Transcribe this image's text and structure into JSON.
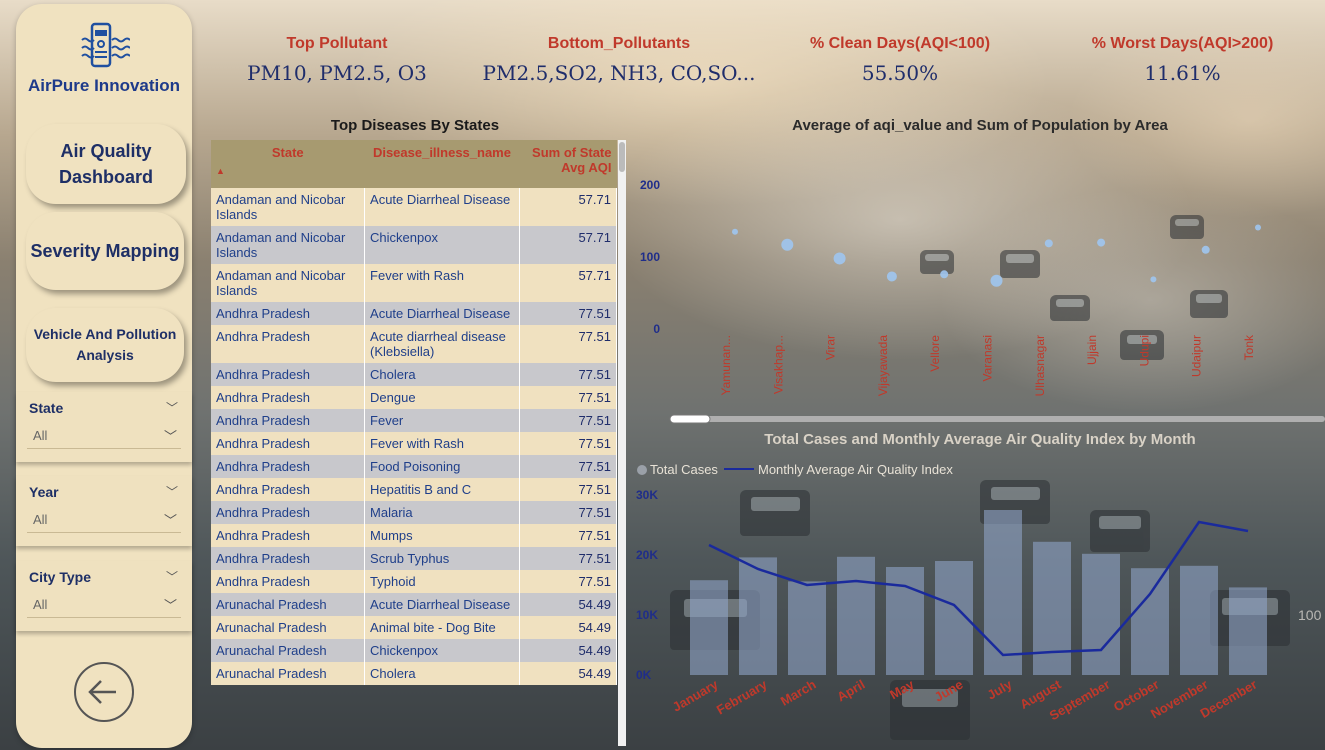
{
  "brand": {
    "name": "AirPure Innovation",
    "logo_icon": "air-purifier-icon"
  },
  "nav": {
    "air_quality": "Air Quality Dashboard",
    "severity": "Severity Mapping",
    "vehicle": "Vehicle And Pollution Analysis"
  },
  "filters": [
    {
      "label": "State",
      "value": "All"
    },
    {
      "label": "Year",
      "value": "All"
    },
    {
      "label": "City Type",
      "value": "All"
    }
  ],
  "kpis": [
    {
      "title": "Top Pollutant",
      "value": "PM10, PM2.5, O3"
    },
    {
      "title": "Bottom_Pollutants",
      "value": "PM2.5,SO2, NH3, CO,SO..."
    },
    {
      "title": "% Clean Days(AQI<100)",
      "value": "55.50%"
    },
    {
      "title": "% Worst Days(AQI>200)",
      "value": "11.61%"
    }
  ],
  "table": {
    "title": "Top Diseases By States",
    "columns": [
      "State",
      "Disease_illness_name",
      "Sum of State Avg AQI"
    ],
    "rows": [
      [
        "Andaman and Nicobar Islands",
        "Acute Diarrheal Disease",
        "57.71"
      ],
      [
        "Andaman and Nicobar Islands",
        "Chickenpox",
        "57.71"
      ],
      [
        "Andaman and Nicobar Islands",
        "Fever with Rash",
        "57.71"
      ],
      [
        "Andhra Pradesh",
        "Acute Diarrheal Disease",
        "77.51"
      ],
      [
        "Andhra Pradesh",
        "Acute diarrheal disease (Klebsiella)",
        "77.51"
      ],
      [
        "Andhra Pradesh",
        "Cholera",
        "77.51"
      ],
      [
        "Andhra Pradesh",
        "Dengue",
        "77.51"
      ],
      [
        "Andhra Pradesh",
        "Fever",
        "77.51"
      ],
      [
        "Andhra Pradesh",
        "Fever with Rash",
        "77.51"
      ],
      [
        "Andhra Pradesh",
        "Food Poisoning",
        "77.51"
      ],
      [
        "Andhra Pradesh",
        "Hepatitis B and C",
        "77.51"
      ],
      [
        "Andhra Pradesh",
        "Malaria",
        "77.51"
      ],
      [
        "Andhra Pradesh",
        "Mumps",
        "77.51"
      ],
      [
        "Andhra Pradesh",
        "Scrub Typhus",
        "77.51"
      ],
      [
        "Andhra Pradesh",
        "Typhoid",
        "77.51"
      ],
      [
        "Arunachal Pradesh",
        "Acute Diarrheal Disease",
        "54.49"
      ],
      [
        "Arunachal Pradesh",
        "Animal bite - Dog Bite",
        "54.49"
      ],
      [
        "Arunachal Pradesh",
        "Chickenpox",
        "54.49"
      ],
      [
        "Arunachal Pradesh",
        "Cholera",
        "54.49"
      ]
    ]
  },
  "chart_data": [
    {
      "type": "scatter",
      "title": "Average of aqi_value and Sum of Population by Area",
      "ylim": [
        0,
        200
      ],
      "yticks": [
        "200",
        "100",
        "0"
      ],
      "categories": [
        "Yamunan...",
        "Visakhap...",
        "Virar",
        "Vijayawada",
        "Vellore",
        "Varanasi",
        "Ulhasnagar",
        "Ujjain",
        "Udupi",
        "Udaipur",
        "Tonk"
      ],
      "points": [
        {
          "x": "Yamunan...",
          "y": 135,
          "size": 2
        },
        {
          "x": "Visakhap...",
          "y": 117,
          "size": 5
        },
        {
          "x": "Virar",
          "y": 98,
          "size": 5
        },
        {
          "x": "Vijayawada",
          "y": 73,
          "size": 4
        },
        {
          "x": "Vellore",
          "y": 76,
          "size": 3
        },
        {
          "x": "Varanasi",
          "y": 67,
          "size": 5
        },
        {
          "x": "Ulhasnagar",
          "y": 119,
          "size": 3
        },
        {
          "x": "Ujjain",
          "y": 120,
          "size": 3
        },
        {
          "x": "Udupi",
          "y": 69,
          "size": 2
        },
        {
          "x": "Udaipur",
          "y": 110,
          "size": 3
        },
        {
          "x": "Tonk",
          "y": 141,
          "size": 2
        }
      ],
      "color": "#9ec5ef"
    },
    {
      "type": "bar+line",
      "title": "Total Cases and Monthly Average Air Quality Index by Month",
      "categories": [
        "January",
        "February",
        "March",
        "April",
        "May",
        "June",
        "July",
        "August",
        "September",
        "October",
        "November",
        "December"
      ],
      "ylim": [
        0,
        30000
      ],
      "yticks": [
        "30K",
        "20K",
        "10K",
        "0K"
      ],
      "y2_label": "100",
      "series": [
        {
          "name": "Total Cases",
          "type": "bar",
          "color": "#8fa4c6",
          "values": [
            15800,
            19600,
            15600,
            19700,
            18000,
            19000,
            27500,
            22200,
            20200,
            17800,
            18200,
            14600
          ]
        },
        {
          "name": "Monthly Average Air Quality Index",
          "type": "line",
          "color": "#1a2a9c",
          "values": [
            115,
            91,
            75,
            79,
            74,
            55,
            5,
            8,
            10,
            66,
            138,
            129
          ]
        }
      ]
    }
  ]
}
